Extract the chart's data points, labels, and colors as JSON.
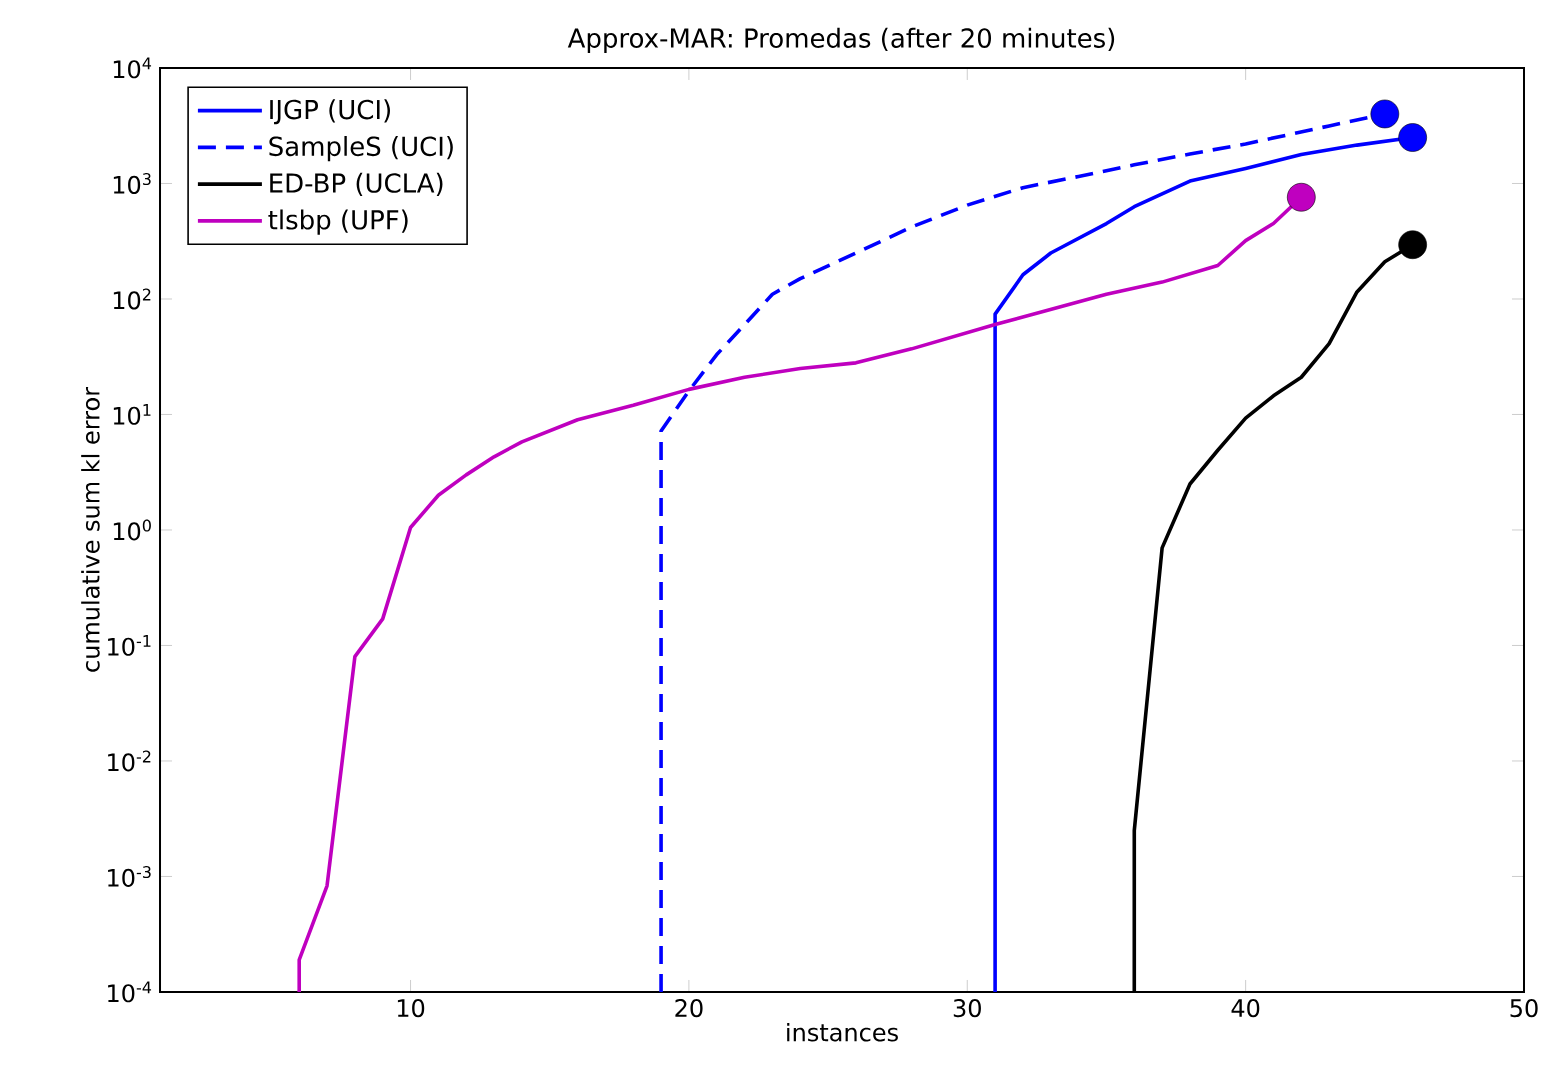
{
  "chart_data": {
    "type": "line",
    "title": "Approx-MAR: Promedas (after 20 minutes)",
    "xlabel": "instances",
    "ylabel": "cumulative sum kl error",
    "log": "y",
    "xlim": [
      1,
      50
    ],
    "ylim": [
      0.0001,
      10000
    ],
    "xticks": [
      10,
      20,
      30,
      40,
      50
    ],
    "yticks": [
      {
        "value": 0.0001,
        "label": "10$^{-4}$"
      },
      {
        "value": 0.001,
        "label": "10$^{-3}$"
      },
      {
        "value": 0.01,
        "label": "10$^{-2}$"
      },
      {
        "value": 0.1,
        "label": "10$^{-1}$"
      },
      {
        "value": 1,
        "label": "10$^{0}$"
      },
      {
        "value": 10,
        "label": "10$^{1}$"
      },
      {
        "value": 100,
        "label": "10$^{2}$"
      },
      {
        "value": 1000,
        "label": "10$^{3}$"
      },
      {
        "value": 10000,
        "label": "10$^{4}$"
      }
    ],
    "grid": false,
    "legend": "top left",
    "series": [
      {
        "name": "IJGP (UCI)",
        "color": "#0000ff",
        "line_style": "solid",
        "x": [
          31,
          31,
          32,
          33,
          35,
          36,
          38,
          40,
          42,
          44,
          46
        ],
        "values": [
          0.0001,
          74,
          162,
          250,
          450,
          630,
          1050,
          1350,
          1780,
          2150,
          2500
        ]
      },
      {
        "name": "SampleS (UCI)",
        "color": "#0000ff",
        "line_style": "dashed",
        "x": [
          19,
          19,
          20,
          21,
          22,
          23,
          24,
          26,
          28,
          30,
          32,
          34,
          36,
          38,
          40,
          43,
          45
        ],
        "values": [
          0.0001,
          7.2,
          16,
          33,
          60,
          110,
          150,
          250,
          420,
          650,
          920,
          1150,
          1450,
          1800,
          2200,
          3150,
          4000
        ]
      },
      {
        "name": "ED-BP (UCLA)",
        "color": "#000000",
        "line_style": "solid",
        "x": [
          36,
          36,
          37,
          38,
          39,
          40,
          41,
          42,
          43,
          44,
          45,
          46
        ],
        "values": [
          0.0001,
          0.0025,
          0.7,
          2.5,
          4.9,
          9.3,
          14.5,
          21,
          41,
          115,
          210,
          295
        ]
      },
      {
        "name": "tlsbp (UPF)",
        "color": "#bf00bf",
        "line_style": "solid",
        "x": [
          6,
          6,
          7,
          8,
          9,
          10,
          11,
          12,
          13,
          14,
          16,
          18,
          20,
          22,
          24,
          26,
          28,
          31,
          35,
          37,
          39,
          40,
          41,
          42
        ],
        "values": [
          0.0001,
          0.00019,
          0.00083,
          0.08,
          0.17,
          1.05,
          2.0,
          3.0,
          4.3,
          5.8,
          9,
          12,
          16.5,
          21,
          25,
          28,
          37,
          60,
          110,
          140,
          195,
          320,
          450,
          760
        ]
      },
      {
        "type": "scatter",
        "marker": "circle",
        "color": "#0000ff",
        "x": [
          46,
          45
        ],
        "values": [
          2500,
          4000
        ]
      },
      {
        "type": "scatter",
        "marker": "circle",
        "color": "#000000",
        "x": [
          46
        ],
        "values": [
          295
        ]
      },
      {
        "type": "scatter",
        "marker": "circle",
        "color": "#bf00bf",
        "x": [
          42
        ],
        "values": [
          760
        ]
      }
    ]
  }
}
